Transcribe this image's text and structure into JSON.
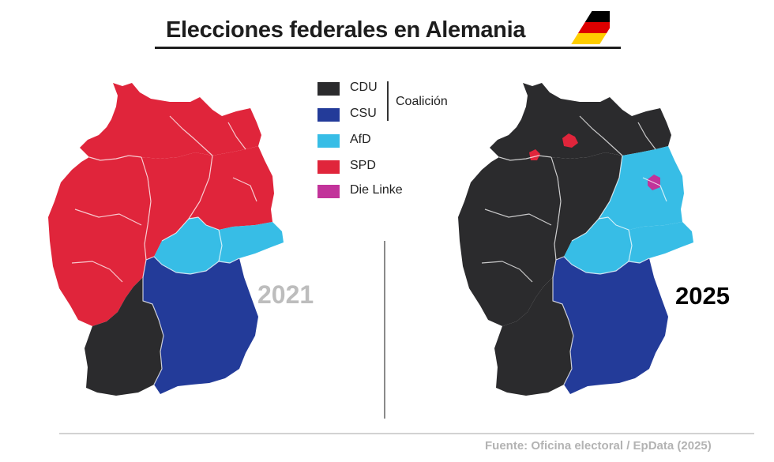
{
  "title": "Elecciones federales en Alemania",
  "flag_colors": [
    "#000000",
    "#dd0000",
    "#ffce00"
  ],
  "legend": {
    "items": [
      {
        "label": "CDU",
        "color": "#2b2b2d"
      },
      {
        "label": "CSU",
        "color": "#233b99"
      },
      {
        "label": "AfD",
        "color": "#37bde6"
      },
      {
        "label": "SPD",
        "color": "#e0253b"
      },
      {
        "label": "Die Linke",
        "color": "#c2339a"
      }
    ],
    "coalition_label": "Coalición"
  },
  "maps": [
    {
      "year": "2021",
      "regions": {
        "north": "SPD",
        "west": "SPD",
        "center": "SPD",
        "east_north": "SPD",
        "thuringia": "AfD",
        "saxony": "AfD",
        "bavaria": "CSU",
        "baden_wuerttemberg": "CDU"
      }
    },
    {
      "year": "2025",
      "regions": {
        "north": "CDU",
        "west": "CDU",
        "center": "CDU",
        "east_north": "AfD",
        "thuringia": "AfD",
        "saxony": "AfD",
        "bavaria": "CSU",
        "baden_wuerttemberg": "CDU",
        "hamburg": "SPD",
        "bremen": "SPD",
        "berlin": "Die Linke"
      }
    }
  ],
  "source": "Fuente:  Oficina electoral / EpData (2025)"
}
